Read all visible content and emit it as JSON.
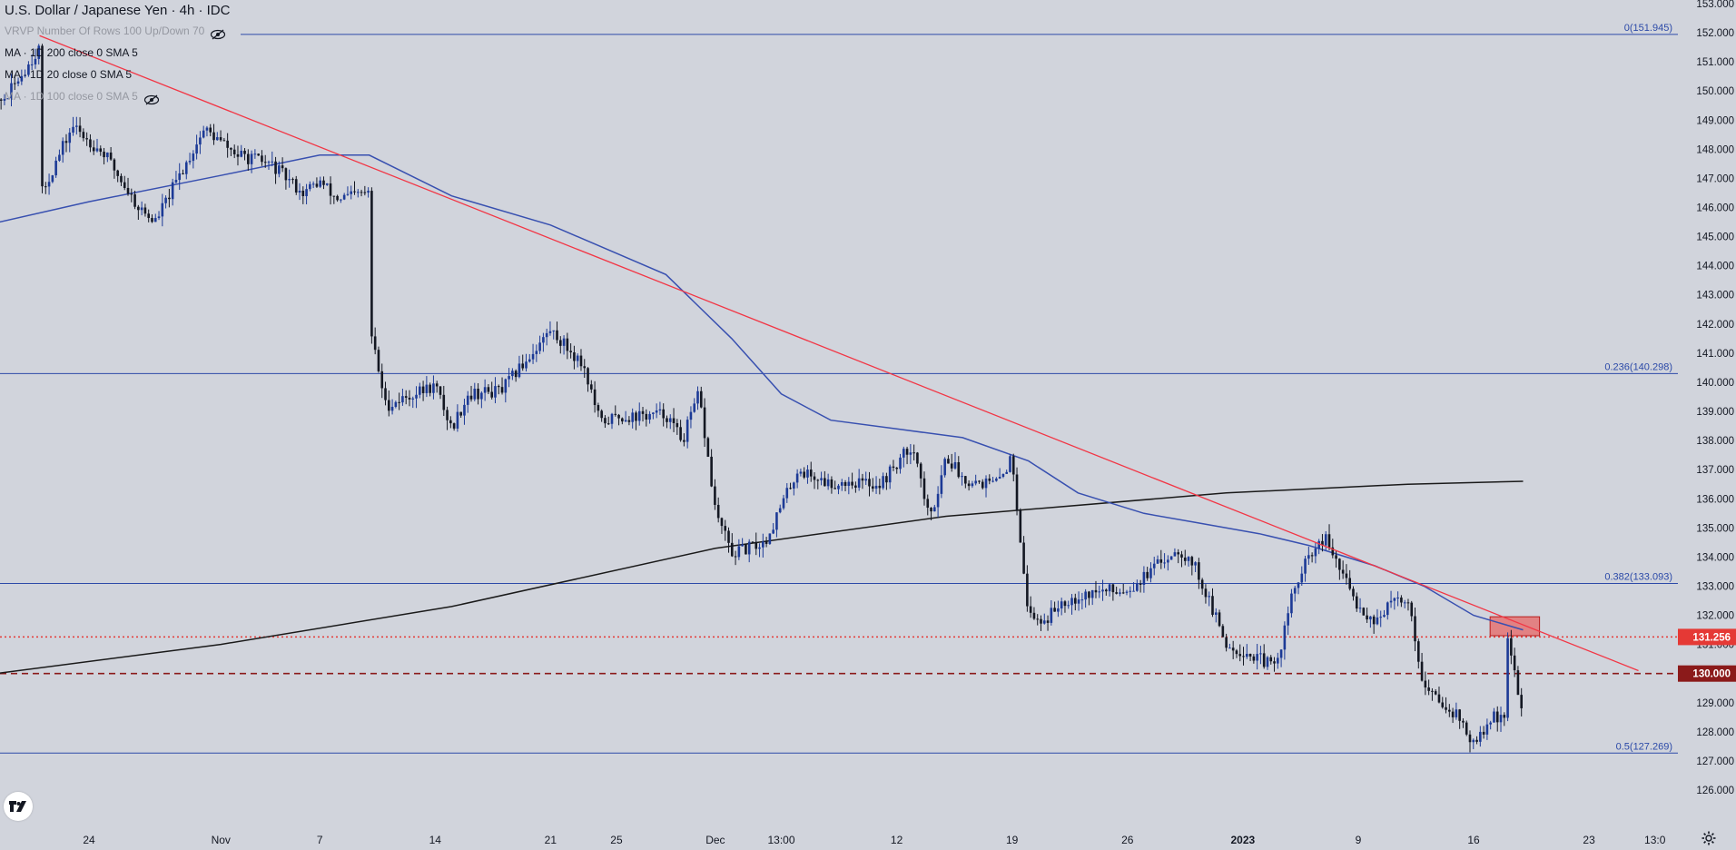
{
  "legend": {
    "title": "U.S. Dollar / Japanese Yen · 4h · IDC",
    "rows": [
      {
        "text": "VRVP Number Of Rows 100 Up/Down 70",
        "faded": true,
        "eye": true
      },
      {
        "text": "MA · 1D 200 close 0 SMA 5",
        "faded": false,
        "eye": false
      },
      {
        "text": "MA · 1D 20 close 0 SMA 5",
        "faded": false,
        "eye": false
      },
      {
        "text": "MA · 1D 100 close 0 SMA 5",
        "faded": true,
        "eye": true
      }
    ]
  },
  "colors": {
    "background": "#d1d4dc",
    "candle_up": "#1c3a96",
    "candle_down": "#131722",
    "fib_line": "#2c4aa8",
    "trendline": "#f23645",
    "ma_200": "#1a1a1a",
    "ma_20": "#3850b0",
    "dotted_level": "#e53935",
    "dashed_level": "#8b1a1a",
    "resistance_zone": "#e57373",
    "resistance_zone_border": "#b71c1c"
  },
  "chart_data": {
    "type": "candlestick",
    "symbol": "U.S. Dollar / Japanese Yen",
    "timeframe": "4h",
    "source": "IDC",
    "ylim": [
      126.0,
      153.0
    ],
    "y_ticks": [
      "126.000",
      "127.000",
      "128.000",
      "129.000",
      "130.000",
      "131.000",
      "132.000",
      "133.000",
      "134.000",
      "135.000",
      "136.000",
      "137.000",
      "138.000",
      "139.000",
      "140.000",
      "141.000",
      "142.000",
      "143.000",
      "144.000",
      "145.000",
      "146.000",
      "147.000",
      "148.000",
      "149.000",
      "150.000",
      "151.000",
      "152.000",
      "153.000"
    ],
    "x_ticks": [
      {
        "label": "24",
        "date": "2022-10-24"
      },
      {
        "label": "Nov",
        "date": "2022-11-01"
      },
      {
        "label": "7",
        "date": "2022-11-07"
      },
      {
        "label": "14",
        "date": "2022-11-14"
      },
      {
        "label": "21",
        "date": "2022-11-21"
      },
      {
        "label": "25",
        "date": "2022-11-25"
      },
      {
        "label": "Dec",
        "date": "2022-12-01"
      },
      {
        "label": "13:00",
        "date": "2022-12-05"
      },
      {
        "label": "12",
        "date": "2022-12-12"
      },
      {
        "label": "19",
        "date": "2022-12-19"
      },
      {
        "label": "26",
        "date": "2022-12-26"
      },
      {
        "label": "2023",
        "date": "2023-01-02",
        "bold": true
      },
      {
        "label": "9",
        "date": "2023-01-09"
      },
      {
        "label": "16",
        "date": "2023-01-16"
      },
      {
        "label": "23",
        "date": "2023-01-23"
      },
      {
        "label": "13:0",
        "date": "2023-01-27"
      }
    ],
    "fib_levels": [
      {
        "label": "0(151.945)",
        "value": 151.945
      },
      {
        "label": "0.236(140.298)",
        "value": 140.298
      },
      {
        "label": "0.382(133.093)",
        "value": 133.093
      },
      {
        "label": "0.5(127.269)",
        "value": 127.269
      }
    ],
    "horizontal_levels": [
      {
        "label": "131.256",
        "value": 131.256,
        "style": "dotted"
      },
      {
        "label": "130.000",
        "value": 130.0,
        "style": "dashed"
      }
    ],
    "trendline": {
      "from": {
        "date": "2022-10-21",
        "value": 151.9
      },
      "to": {
        "date": "2023-01-26",
        "value": 130.1
      }
    },
    "resistance_zone": {
      "from_date": "2023-01-17",
      "to_date": "2023-01-20",
      "low": 131.3,
      "high": 131.95
    },
    "ma_200": [
      [
        "2022-10-17",
        129.9
      ],
      [
        "2022-11-01",
        131.0
      ],
      [
        "2022-11-15",
        132.3
      ],
      [
        "2022-12-01",
        134.3
      ],
      [
        "2022-12-15",
        135.4
      ],
      [
        "2023-01-01",
        136.2
      ],
      [
        "2023-01-12",
        136.5
      ],
      [
        "2023-01-19",
        136.6
      ]
    ],
    "ma_20": [
      [
        "2022-10-17",
        145.3
      ],
      [
        "2022-10-24",
        146.2
      ],
      [
        "2022-11-01",
        147.1
      ],
      [
        "2022-11-07",
        147.8
      ],
      [
        "2022-11-10",
        147.8
      ],
      [
        "2022-11-15",
        146.4
      ],
      [
        "2022-11-21",
        145.4
      ],
      [
        "2022-11-28",
        143.7
      ],
      [
        "2022-12-02",
        141.5
      ],
      [
        "2022-12-05",
        139.6
      ],
      [
        "2022-12-08",
        138.7
      ],
      [
        "2022-12-12",
        138.4
      ],
      [
        "2022-12-16",
        138.1
      ],
      [
        "2022-12-20",
        137.3
      ],
      [
        "2022-12-23",
        136.2
      ],
      [
        "2022-12-27",
        135.5
      ],
      [
        "2022-12-30",
        135.2
      ],
      [
        "2023-01-03",
        134.8
      ],
      [
        "2023-01-06",
        134.4
      ],
      [
        "2023-01-10",
        133.7
      ],
      [
        "2023-01-13",
        133.0
      ],
      [
        "2023-01-16",
        132.0
      ],
      [
        "2023-01-19",
        131.5
      ]
    ],
    "price_path": [
      [
        "2022-10-17",
        148.9
      ],
      [
        "2022-10-19",
        149.8
      ],
      [
        "2022-10-21",
        151.5
      ],
      [
        "2022-10-21",
        146.3
      ],
      [
        "2022-10-23",
        148.8
      ],
      [
        "2022-10-25",
        147.8
      ],
      [
        "2022-10-27",
        146.0
      ],
      [
        "2022-10-28",
        145.5
      ],
      [
        "2022-10-31",
        148.7
      ],
      [
        "2022-11-02",
        147.8
      ],
      [
        "2022-11-04",
        147.5
      ],
      [
        "2022-11-06",
        146.5
      ],
      [
        "2022-11-07",
        146.9
      ],
      [
        "2022-11-08",
        146.3
      ],
      [
        "2022-11-10",
        146.5
      ],
      [
        "2022-11-10",
        142.0
      ],
      [
        "2022-11-11",
        139.2
      ],
      [
        "2022-11-14",
        139.9
      ],
      [
        "2022-11-15",
        138.4
      ],
      [
        "2022-11-16",
        139.6
      ],
      [
        "2022-11-18",
        139.7
      ],
      [
        "2022-11-21",
        141.8
      ],
      [
        "2022-11-22",
        141.2
      ],
      [
        "2022-11-23",
        140.6
      ],
      [
        "2022-11-24",
        138.6
      ],
      [
        "2022-11-25",
        138.8
      ],
      [
        "2022-11-28",
        138.9
      ],
      [
        "2022-11-29",
        138.0
      ],
      [
        "2022-11-30",
        139.6
      ],
      [
        "2022-12-01",
        135.6
      ],
      [
        "2022-12-02",
        134.1
      ],
      [
        "2022-12-04",
        134.5
      ],
      [
        "2022-12-06",
        137.0
      ],
      [
        "2022-12-08",
        136.5
      ],
      [
        "2022-12-09",
        136.6
      ],
      [
        "2022-12-11",
        136.5
      ],
      [
        "2022-12-13",
        137.9
      ],
      [
        "2022-12-14",
        135.2
      ],
      [
        "2022-12-15",
        137.5
      ],
      [
        "2022-12-16",
        136.7
      ],
      [
        "2022-12-18",
        136.5
      ],
      [
        "2022-12-19",
        137.4
      ],
      [
        "2022-12-20",
        132.0
      ],
      [
        "2022-12-21",
        131.8
      ],
      [
        "2022-12-22",
        132.5
      ],
      [
        "2022-12-24",
        132.8
      ],
      [
        "2022-12-26",
        132.9
      ],
      [
        "2022-12-27",
        133.3
      ],
      [
        "2022-12-29",
        134.3
      ],
      [
        "2022-12-30",
        133.8
      ],
      [
        "2023-01-01",
        131.0
      ],
      [
        "2023-01-03",
        130.5
      ],
      [
        "2023-01-04",
        130.2
      ],
      [
        "2023-01-05",
        132.7
      ],
      [
        "2023-01-06",
        134.0
      ],
      [
        "2023-01-07",
        134.6
      ],
      [
        "2023-01-09",
        132.3
      ],
      [
        "2023-01-10",
        131.8
      ],
      [
        "2023-01-11",
        132.4
      ],
      [
        "2023-01-12",
        132.6
      ],
      [
        "2023-01-13",
        129.5
      ],
      [
        "2023-01-15",
        128.6
      ],
      [
        "2023-01-16",
        127.5
      ],
      [
        "2023-01-17",
        128.4
      ],
      [
        "2023-01-18",
        128.7
      ],
      [
        "2023-01-18",
        131.2
      ],
      [
        "2023-01-19",
        128.7
      ],
      [
        "2023-01-19",
        127.9
      ]
    ]
  }
}
